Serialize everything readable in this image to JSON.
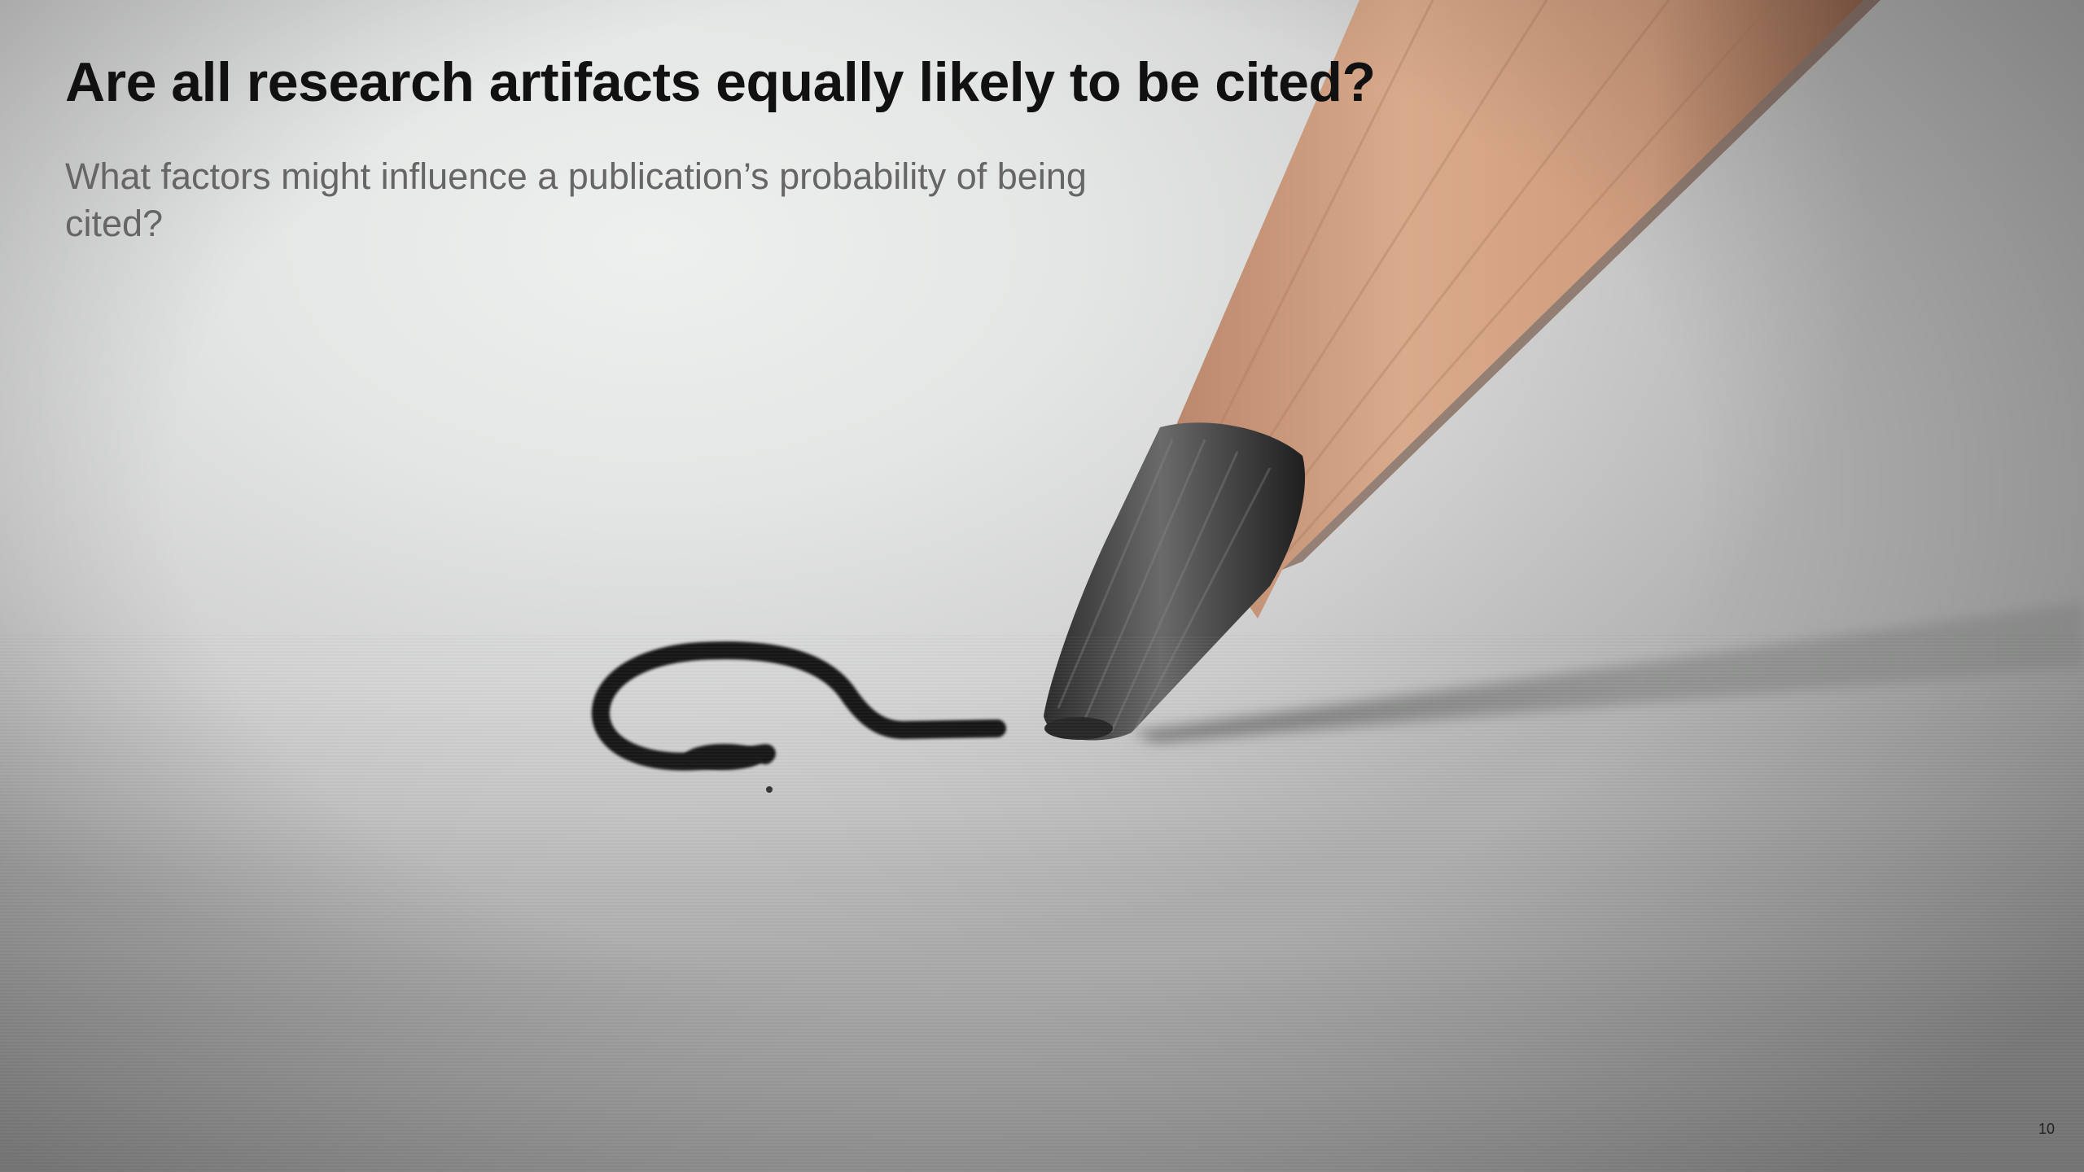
{
  "slide": {
    "title": "Are all research artifacts equally likely to be cited?",
    "subtitle": "What factors might influence a publication’s probability of being cited?",
    "page_number": "10"
  },
  "image": {
    "description_icon": "pencil-drawing-question-mark",
    "colors": {
      "paper": "#e4e6e5",
      "wood": "#d3a384",
      "graphite": "#3c3c3c",
      "shadow": "#8e8f8e"
    }
  }
}
